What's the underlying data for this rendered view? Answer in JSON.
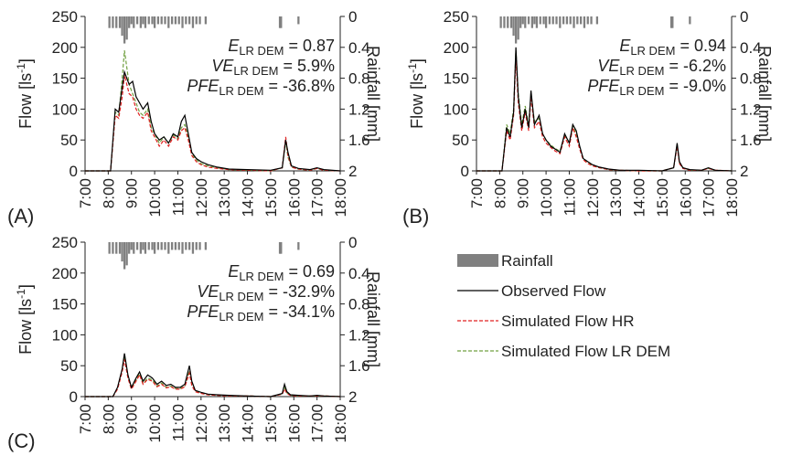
{
  "chart_data": [
    {
      "type": "line",
      "panel_label": "(A)",
      "ylabel": "Flow [ls",
      "ylabel_sup": "-1",
      "ylabel_close": "]",
      "y2label": "Rainfall [mm]",
      "ylim": [
        0,
        250
      ],
      "y2lim": [
        0,
        2
      ],
      "yticks": [
        "0",
        "50",
        "100",
        "150",
        "200",
        "250"
      ],
      "y2ticks": [
        "0",
        "0.4",
        "0.8",
        "1.2",
        "1.6",
        "2"
      ],
      "xticks": [
        "7:00",
        "8:00",
        "9:00",
        "10:00",
        "11:00",
        "12:00",
        "13:00",
        "14:00",
        "15:00",
        "16:00",
        "17:00",
        "18:00"
      ],
      "stats": [
        {
          "italic": "E",
          "sub": "LR DEM",
          "value": " = 0.87"
        },
        {
          "italic": "VE",
          "sub": "LR DEM",
          "value": " = 5.9%"
        },
        {
          "italic": "PFE",
          "sub": "LR DEM",
          "value": " = -36.8%"
        }
      ],
      "rainfall": {
        "x": [
          8.05,
          8.2,
          8.35,
          8.5,
          8.6,
          8.7,
          8.8,
          8.9,
          9.0,
          9.1,
          9.25,
          9.4,
          9.5,
          9.6,
          9.75,
          9.9,
          10.0,
          10.15,
          10.3,
          10.45,
          10.6,
          10.75,
          10.9,
          11.05,
          11.2,
          11.35,
          11.5,
          11.65,
          11.8,
          11.95,
          12.2,
          15.4,
          15.45,
          16.2
        ],
        "y": [
          0.15,
          0.15,
          0.15,
          0.15,
          0.25,
          0.35,
          0.3,
          0.15,
          0.1,
          0.15,
          0.1,
          0.15,
          0.1,
          0.15,
          0.1,
          0.1,
          0.15,
          0.1,
          0.1,
          0.1,
          0.15,
          0.1,
          0.1,
          0.1,
          0.15,
          0.1,
          0.1,
          0.15,
          0.1,
          0.1,
          0.1,
          0.15,
          0.15,
          0.1
        ]
      },
      "series": [
        {
          "name": "Observed Flow",
          "x": [
            7.0,
            8.1,
            8.3,
            8.45,
            8.6,
            8.7,
            8.9,
            9.05,
            9.2,
            9.35,
            9.5,
            9.7,
            9.85,
            10.0,
            10.2,
            10.4,
            10.6,
            10.8,
            11.0,
            11.15,
            11.3,
            11.45,
            11.6,
            11.8,
            12.0,
            12.3,
            12.7,
            13.2,
            14.0,
            15.0,
            15.5,
            15.65,
            15.75,
            15.9,
            16.2,
            16.7,
            17.0,
            17.3,
            18.0
          ],
          "y": [
            0,
            0,
            100,
            95,
            135,
            160,
            140,
            145,
            120,
            110,
            100,
            110,
            80,
            60,
            50,
            55,
            45,
            60,
            55,
            80,
            90,
            60,
            30,
            20,
            15,
            10,
            6,
            3,
            2,
            1,
            5,
            50,
            30,
            8,
            4,
            2,
            5,
            2,
            0
          ]
        },
        {
          "name": "Simulated Flow HR",
          "x": [
            7.0,
            8.1,
            8.3,
            8.45,
            8.6,
            8.7,
            8.9,
            9.05,
            9.2,
            9.35,
            9.5,
            9.7,
            9.85,
            10.0,
            10.2,
            10.4,
            10.6,
            10.8,
            11.0,
            11.15,
            11.3,
            11.45,
            11.6,
            11.8,
            12.0,
            12.3,
            12.7,
            13.2,
            14.0,
            15.0,
            15.5,
            15.65,
            15.75,
            15.9,
            16.2,
            16.7,
            17.0,
            17.3,
            18.0
          ],
          "y": [
            0,
            0,
            90,
            85,
            120,
            155,
            125,
            120,
            100,
            90,
            85,
            95,
            65,
            55,
            40,
            50,
            40,
            55,
            50,
            65,
            70,
            50,
            25,
            15,
            10,
            6,
            4,
            2,
            1,
            0,
            5,
            55,
            25,
            6,
            3,
            1,
            4,
            1,
            0
          ]
        },
        {
          "name": "Simulated Flow LR DEM",
          "x": [
            7.0,
            8.1,
            8.3,
            8.45,
            8.6,
            8.7,
            8.9,
            9.05,
            9.2,
            9.35,
            9.5,
            9.7,
            9.85,
            10.0,
            10.2,
            10.4,
            10.6,
            10.8,
            11.0,
            11.15,
            11.3,
            11.45,
            11.6,
            11.8,
            12.0,
            12.3,
            12.7,
            13.2,
            14.0,
            15.0,
            15.5,
            15.65,
            15.75,
            15.9,
            16.2,
            16.7,
            17.0,
            17.3,
            18.0
          ],
          "y": [
            0,
            0,
            95,
            90,
            150,
            195,
            140,
            125,
            110,
            95,
            90,
            100,
            70,
            60,
            45,
            55,
            45,
            58,
            52,
            70,
            75,
            55,
            28,
            18,
            12,
            8,
            5,
            2,
            1,
            0,
            5,
            48,
            22,
            6,
            3,
            1,
            4,
            1,
            0
          ]
        }
      ]
    },
    {
      "type": "line",
      "panel_label": "(B)",
      "ylabel": "Flow [ls",
      "ylabel_sup": "-1",
      "ylabel_close": "]",
      "y2label": "Rainfall [mm]",
      "ylim": [
        0,
        250
      ],
      "y2lim": [
        0,
        2
      ],
      "yticks": [
        "0",
        "50",
        "100",
        "150",
        "200",
        "250"
      ],
      "y2ticks": [
        "0",
        "0.4",
        "0.8",
        "1.2",
        "1.6",
        "2"
      ],
      "xticks": [
        "7:00",
        "8:00",
        "9:00",
        "10:00",
        "11:00",
        "12:00",
        "13:00",
        "14:00",
        "15:00",
        "16:00",
        "17:00",
        "18:00"
      ],
      "stats": [
        {
          "italic": "E",
          "sub": "LR DEM",
          "value": " = 0.94"
        },
        {
          "italic": "VE",
          "sub": "LR DEM",
          "value": " = -6.2%"
        },
        {
          "italic": "PFE",
          "sub": "LR DEM",
          "value": " = -9.0%"
        }
      ],
      "rainfall": {
        "x": [
          8.05,
          8.2,
          8.35,
          8.5,
          8.6,
          8.7,
          8.8,
          8.9,
          9.0,
          9.1,
          9.25,
          9.4,
          9.5,
          9.6,
          9.75,
          9.9,
          10.0,
          10.15,
          10.3,
          10.45,
          10.6,
          10.75,
          10.9,
          11.05,
          11.2,
          11.35,
          11.5,
          11.65,
          11.8,
          11.95,
          12.2,
          15.4,
          15.45,
          16.2
        ],
        "y": [
          0.15,
          0.15,
          0.15,
          0.15,
          0.25,
          0.35,
          0.3,
          0.15,
          0.1,
          0.15,
          0.1,
          0.15,
          0.1,
          0.15,
          0.1,
          0.1,
          0.15,
          0.1,
          0.1,
          0.1,
          0.15,
          0.1,
          0.1,
          0.1,
          0.15,
          0.1,
          0.1,
          0.15,
          0.1,
          0.1,
          0.1,
          0.15,
          0.15,
          0.1
        ]
      },
      "series": [
        {
          "name": "Observed Flow",
          "x": [
            7.0,
            8.1,
            8.3,
            8.45,
            8.6,
            8.7,
            8.8,
            8.95,
            9.1,
            9.25,
            9.35,
            9.5,
            9.7,
            9.85,
            10.0,
            10.2,
            10.4,
            10.6,
            10.8,
            11.0,
            11.15,
            11.3,
            11.45,
            11.6,
            11.8,
            12.0,
            12.3,
            12.7,
            13.2,
            14.0,
            15.0,
            15.5,
            15.65,
            15.75,
            15.9,
            16.2,
            16.7,
            17.0,
            17.3,
            18.0
          ],
          "y": [
            0,
            0,
            70,
            55,
            95,
            200,
            120,
            70,
            100,
            70,
            130,
            75,
            90,
            60,
            50,
            40,
            35,
            30,
            60,
            45,
            75,
            65,
            40,
            20,
            15,
            10,
            6,
            3,
            1,
            1,
            0,
            5,
            45,
            15,
            5,
            2,
            1,
            5,
            1,
            0
          ]
        },
        {
          "name": "Simulated Flow HR",
          "x": [
            7.0,
            8.1,
            8.3,
            8.45,
            8.6,
            8.7,
            8.8,
            8.95,
            9.1,
            9.25,
            9.35,
            9.5,
            9.7,
            9.85,
            10.0,
            10.2,
            10.4,
            10.6,
            10.8,
            11.0,
            11.15,
            11.3,
            11.45,
            11.6,
            11.8,
            12.0,
            12.3,
            12.7,
            13.2,
            14.0,
            15.0,
            15.5,
            15.65,
            15.75,
            15.9,
            16.2,
            16.7,
            17.0,
            17.3,
            18.0
          ],
          "y": [
            0,
            0,
            65,
            50,
            90,
            185,
            110,
            65,
            95,
            65,
            120,
            70,
            80,
            55,
            45,
            38,
            32,
            28,
            55,
            40,
            70,
            55,
            35,
            18,
            12,
            8,
            5,
            2,
            1,
            0,
            0,
            5,
            40,
            12,
            4,
            1,
            1,
            4,
            1,
            0
          ]
        },
        {
          "name": "Simulated Flow LR DEM",
          "x": [
            7.0,
            8.1,
            8.3,
            8.45,
            8.6,
            8.7,
            8.8,
            8.95,
            9.1,
            9.25,
            9.35,
            9.5,
            9.7,
            9.85,
            10.0,
            10.2,
            10.4,
            10.6,
            10.8,
            11.0,
            11.15,
            11.3,
            11.45,
            11.6,
            11.8,
            12.0,
            12.3,
            12.7,
            13.2,
            14.0,
            15.0,
            15.5,
            15.65,
            15.75,
            15.9,
            16.2,
            16.7,
            17.0,
            17.3,
            18.0
          ],
          "y": [
            0,
            0,
            75,
            60,
            100,
            195,
            125,
            75,
            105,
            75,
            125,
            80,
            85,
            60,
            50,
            42,
            36,
            32,
            58,
            46,
            72,
            60,
            38,
            20,
            14,
            9,
            5,
            2,
            1,
            0,
            0,
            5,
            42,
            14,
            5,
            1,
            1,
            4,
            1,
            0
          ]
        }
      ]
    },
    {
      "type": "line",
      "panel_label": "(C)",
      "ylabel": "Flow [ls",
      "ylabel_sup": "-1",
      "ylabel_close": "]",
      "y2label": "Rainfall [mm]",
      "ylim": [
        0,
        250
      ],
      "y2lim": [
        0,
        2
      ],
      "yticks": [
        "0",
        "50",
        "100",
        "150",
        "200",
        "250"
      ],
      "y2ticks": [
        "0",
        "0.4",
        "0.8",
        "1.2",
        "1.6",
        "2"
      ],
      "xticks": [
        "7:00",
        "8:00",
        "9:00",
        "10:00",
        "11:00",
        "12:00",
        "13:00",
        "14:00",
        "15:00",
        "16:00",
        "17:00",
        "18:00"
      ],
      "stats": [
        {
          "italic": "E",
          "sub": "LR DEM",
          "value": " = 0.69"
        },
        {
          "italic": "VE",
          "sub": "LR DEM",
          "value": " = -32.9%"
        },
        {
          "italic": "PFE",
          "sub": "LR DEM",
          "value": " = -34.1%"
        }
      ],
      "rainfall": {
        "x": [
          8.05,
          8.2,
          8.35,
          8.5,
          8.6,
          8.7,
          8.8,
          8.9,
          9.0,
          9.1,
          9.25,
          9.4,
          9.5,
          9.6,
          9.75,
          9.9,
          10.0,
          10.15,
          10.3,
          10.45,
          10.6,
          10.75,
          10.9,
          11.05,
          11.2,
          11.35,
          11.5,
          11.65,
          11.8,
          11.95,
          12.2,
          15.4,
          15.45,
          16.2
        ],
        "y": [
          0.15,
          0.15,
          0.15,
          0.15,
          0.25,
          0.35,
          0.3,
          0.15,
          0.1,
          0.15,
          0.1,
          0.15,
          0.1,
          0.15,
          0.1,
          0.1,
          0.15,
          0.1,
          0.1,
          0.1,
          0.15,
          0.1,
          0.1,
          0.1,
          0.15,
          0.1,
          0.1,
          0.15,
          0.1,
          0.1,
          0.1,
          0.15,
          0.15,
          0.1
        ]
      },
      "series": [
        {
          "name": "Observed Flow",
          "x": [
            7.0,
            8.2,
            8.4,
            8.6,
            8.7,
            8.85,
            9.0,
            9.2,
            9.35,
            9.5,
            9.7,
            9.9,
            10.1,
            10.3,
            10.5,
            10.7,
            10.9,
            11.1,
            11.3,
            11.5,
            11.6,
            11.75,
            12.0,
            12.3,
            12.7,
            13.2,
            14.0,
            15.0,
            15.5,
            15.6,
            15.7,
            15.85,
            16.2,
            16.7,
            17.0,
            17.3,
            18.0
          ],
          "y": [
            0,
            0,
            15,
            45,
            70,
            35,
            15,
            30,
            40,
            25,
            35,
            30,
            20,
            25,
            18,
            20,
            15,
            15,
            20,
            50,
            25,
            10,
            7,
            4,
            3,
            2,
            1,
            0,
            5,
            20,
            8,
            3,
            2,
            1,
            2,
            1,
            0
          ]
        },
        {
          "name": "Simulated Flow HR",
          "x": [
            7.0,
            8.2,
            8.4,
            8.6,
            8.7,
            8.85,
            9.0,
            9.2,
            9.35,
            9.5,
            9.7,
            9.9,
            10.1,
            10.3,
            10.5,
            10.7,
            10.9,
            11.1,
            11.3,
            11.5,
            11.6,
            11.75,
            12.0,
            12.3,
            12.7,
            13.2,
            14.0,
            15.0,
            15.5,
            15.6,
            15.7,
            15.85,
            16.2,
            16.7,
            17.0,
            17.3,
            18.0
          ],
          "y": [
            0,
            0,
            12,
            40,
            60,
            30,
            12,
            25,
            35,
            20,
            28,
            25,
            16,
            20,
            14,
            16,
            12,
            12,
            16,
            38,
            18,
            8,
            5,
            3,
            2,
            1,
            1,
            0,
            4,
            12,
            5,
            2,
            1,
            1,
            1,
            1,
            0
          ]
        },
        {
          "name": "Simulated Flow LR DEM",
          "x": [
            7.0,
            8.2,
            8.4,
            8.6,
            8.7,
            8.85,
            9.0,
            9.2,
            9.35,
            9.5,
            9.7,
            9.9,
            10.1,
            10.3,
            10.5,
            10.7,
            10.9,
            11.1,
            11.3,
            11.5,
            11.6,
            11.75,
            12.0,
            12.3,
            12.7,
            13.2,
            14.0,
            15.0,
            15.5,
            15.6,
            15.7,
            15.85,
            16.2,
            16.7,
            17.0,
            17.3,
            18.0
          ],
          "y": [
            0,
            0,
            13,
            42,
            65,
            32,
            13,
            27,
            37,
            22,
            30,
            27,
            17,
            22,
            15,
            17,
            13,
            13,
            17,
            42,
            20,
            9,
            6,
            3,
            2,
            1,
            1,
            0,
            4,
            14,
            6,
            2,
            1,
            1,
            1,
            1,
            0
          ]
        }
      ]
    }
  ],
  "colors": {
    "rainfall": "#808080",
    "observed": "#000000",
    "hr": "#e02020",
    "lr": "#70a040"
  },
  "legend": {
    "items": [
      {
        "label": "Rainfall",
        "style": "bar"
      },
      {
        "label": "Observed Flow",
        "style": "solid-black"
      },
      {
        "label": "Simulated Flow HR",
        "style": "dash-red"
      },
      {
        "label": "Simulated Flow LR DEM",
        "style": "dash-green"
      }
    ]
  }
}
